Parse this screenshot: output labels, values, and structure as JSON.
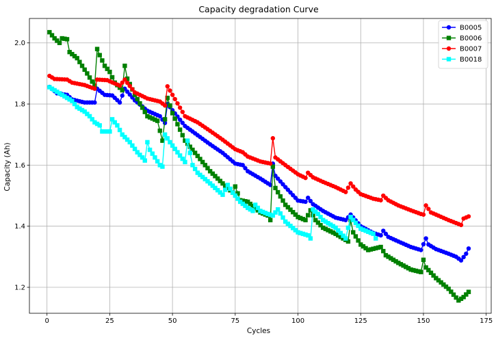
{
  "chart_data": {
    "type": "line",
    "title": "Capacity degradation Curve",
    "xlabel": "Cycles",
    "ylabel": "Capacity (Ah)",
    "xlim": [
      -7,
      177
    ],
    "ylim": [
      1.115,
      2.08
    ],
    "x_ticks": [
      0,
      25,
      50,
      75,
      100,
      125,
      150,
      175
    ],
    "y_ticks": [
      1.2,
      1.4,
      1.6,
      1.8,
      2.0
    ],
    "x_tick_labels": [
      "0",
      "25",
      "50",
      "75",
      "100",
      "125",
      "150",
      "175"
    ],
    "y_tick_labels": [
      "1.2",
      "1.4",
      "1.6",
      "1.8",
      "2.0"
    ],
    "grid": true,
    "legend_position": "top-right",
    "series": [
      {
        "name": "B0005",
        "color": "#0000ff",
        "marker": "circle",
        "points": [
          [
            1,
            1.856
          ],
          [
            4,
            1.835
          ],
          [
            8,
            1.83
          ],
          [
            10,
            1.815
          ],
          [
            15,
            1.805
          ],
          [
            19,
            1.805
          ],
          [
            20,
            1.85
          ],
          [
            23,
            1.83
          ],
          [
            26,
            1.828
          ],
          [
            29,
            1.805
          ],
          [
            31,
            1.85
          ],
          [
            35,
            1.812
          ],
          [
            40,
            1.778
          ],
          [
            45,
            1.76
          ],
          [
            47,
            1.738
          ],
          [
            48,
            1.8
          ],
          [
            55,
            1.728
          ],
          [
            60,
            1.698
          ],
          [
            65,
            1.668
          ],
          [
            70,
            1.64
          ],
          [
            75,
            1.605
          ],
          [
            78,
            1.6
          ],
          [
            80,
            1.58
          ],
          [
            85,
            1.556
          ],
          [
            89,
            1.535
          ],
          [
            90,
            1.605
          ],
          [
            91,
            1.565
          ],
          [
            95,
            1.528
          ],
          [
            100,
            1.484
          ],
          [
            103,
            1.48
          ],
          [
            104,
            1.493
          ],
          [
            106,
            1.472
          ],
          [
            110,
            1.45
          ],
          [
            115,
            1.428
          ],
          [
            119,
            1.42
          ],
          [
            121,
            1.438
          ],
          [
            125,
            1.4
          ],
          [
            130,
            1.378
          ],
          [
            133,
            1.37
          ],
          [
            134,
            1.385
          ],
          [
            136,
            1.365
          ],
          [
            140,
            1.35
          ],
          [
            145,
            1.332
          ],
          [
            149,
            1.322
          ],
          [
            151,
            1.36
          ],
          [
            152,
            1.34
          ],
          [
            155,
            1.325
          ],
          [
            160,
            1.31
          ],
          [
            163,
            1.3
          ],
          [
            165,
            1.288
          ],
          [
            167,
            1.31
          ],
          [
            168,
            1.327
          ]
        ]
      },
      {
        "name": "B0006",
        "color": "#008000",
        "marker": "square",
        "points": [
          [
            1,
            2.035
          ],
          [
            3,
            2.015
          ],
          [
            5,
            2.0
          ],
          [
            6,
            2.015
          ],
          [
            8,
            2.012
          ],
          [
            9,
            1.97
          ],
          [
            12,
            1.95
          ],
          [
            16,
            1.9
          ],
          [
            19,
            1.86
          ],
          [
            20,
            1.98
          ],
          [
            21,
            1.96
          ],
          [
            23,
            1.925
          ],
          [
            25,
            1.905
          ],
          [
            27,
            1.87
          ],
          [
            30,
            1.845
          ],
          [
            31,
            1.925
          ],
          [
            32,
            1.883
          ],
          [
            35,
            1.83
          ],
          [
            40,
            1.76
          ],
          [
            44,
            1.745
          ],
          [
            46,
            1.68
          ],
          [
            48,
            1.82
          ],
          [
            50,
            1.77
          ],
          [
            55,
            1.68
          ],
          [
            60,
            1.63
          ],
          [
            65,
            1.58
          ],
          [
            70,
            1.54
          ],
          [
            74,
            1.51
          ],
          [
            75,
            1.53
          ],
          [
            77,
            1.485
          ],
          [
            80,
            1.48
          ],
          [
            85,
            1.445
          ],
          [
            88,
            1.435
          ],
          [
            89,
            1.42
          ],
          [
            90,
            1.595
          ],
          [
            91,
            1.525
          ],
          [
            95,
            1.47
          ],
          [
            100,
            1.43
          ],
          [
            103,
            1.42
          ],
          [
            105,
            1.452
          ],
          [
            107,
            1.42
          ],
          [
            110,
            1.395
          ],
          [
            115,
            1.375
          ],
          [
            120,
            1.35
          ],
          [
            121,
            1.42
          ],
          [
            122,
            1.38
          ],
          [
            125,
            1.34
          ],
          [
            128,
            1.322
          ],
          [
            133,
            1.332
          ],
          [
            135,
            1.305
          ],
          [
            140,
            1.28
          ],
          [
            145,
            1.258
          ],
          [
            149,
            1.25
          ],
          [
            150,
            1.29
          ],
          [
            151,
            1.265
          ],
          [
            155,
            1.23
          ],
          [
            160,
            1.195
          ],
          [
            164,
            1.157
          ],
          [
            166,
            1.168
          ],
          [
            168,
            1.185
          ]
        ]
      },
      {
        "name": "B0007",
        "color": "#ff0000",
        "marker": "circle",
        "points": [
          [
            1,
            1.892
          ],
          [
            3,
            1.882
          ],
          [
            8,
            1.88
          ],
          [
            10,
            1.87
          ],
          [
            15,
            1.862
          ],
          [
            19,
            1.85
          ],
          [
            20,
            1.88
          ],
          [
            24,
            1.878
          ],
          [
            29,
            1.86
          ],
          [
            31,
            1.88
          ],
          [
            35,
            1.838
          ],
          [
            40,
            1.818
          ],
          [
            45,
            1.808
          ],
          [
            47,
            1.795
          ],
          [
            48,
            1.858
          ],
          [
            55,
            1.76
          ],
          [
            60,
            1.74
          ],
          [
            65,
            1.712
          ],
          [
            70,
            1.683
          ],
          [
            75,
            1.652
          ],
          [
            78,
            1.642
          ],
          [
            80,
            1.628
          ],
          [
            85,
            1.612
          ],
          [
            89,
            1.605
          ],
          [
            90,
            1.688
          ],
          [
            91,
            1.625
          ],
          [
            95,
            1.6
          ],
          [
            100,
            1.57
          ],
          [
            103,
            1.558
          ],
          [
            104,
            1.575
          ],
          [
            106,
            1.56
          ],
          [
            110,
            1.545
          ],
          [
            115,
            1.528
          ],
          [
            119,
            1.512
          ],
          [
            121,
            1.54
          ],
          [
            123,
            1.52
          ],
          [
            125,
            1.505
          ],
          [
            130,
            1.49
          ],
          [
            133,
            1.485
          ],
          [
            134,
            1.5
          ],
          [
            136,
            1.485
          ],
          [
            140,
            1.468
          ],
          [
            145,
            1.452
          ],
          [
            149,
            1.44
          ],
          [
            150,
            1.438
          ],
          [
            151,
            1.468
          ],
          [
            153,
            1.445
          ],
          [
            155,
            1.438
          ],
          [
            160,
            1.42
          ],
          [
            165,
            1.404
          ],
          [
            166,
            1.425
          ],
          [
            168,
            1.432
          ]
        ]
      },
      {
        "name": "B0018",
        "color": "#00ffff",
        "marker": "square",
        "points": [
          [
            1,
            1.855
          ],
          [
            5,
            1.835
          ],
          [
            8,
            1.82
          ],
          [
            10,
            1.81
          ],
          [
            12,
            1.79
          ],
          [
            15,
            1.775
          ],
          [
            17,
            1.76
          ],
          [
            19,
            1.74
          ],
          [
            21,
            1.73
          ],
          [
            22,
            1.71
          ],
          [
            25,
            1.71
          ],
          [
            26,
            1.75
          ],
          [
            28,
            1.73
          ],
          [
            30,
            1.7
          ],
          [
            33,
            1.675
          ],
          [
            36,
            1.642
          ],
          [
            38,
            1.625
          ],
          [
            39,
            1.615
          ],
          [
            40,
            1.675
          ],
          [
            41,
            1.65
          ],
          [
            43,
            1.625
          ],
          [
            45,
            1.6
          ],
          [
            46,
            1.595
          ],
          [
            47,
            1.7
          ],
          [
            49,
            1.675
          ],
          [
            52,
            1.642
          ],
          [
            55,
            1.61
          ],
          [
            56,
            1.68
          ],
          [
            58,
            1.6
          ],
          [
            60,
            1.575
          ],
          [
            65,
            1.54
          ],
          [
            70,
            1.503
          ],
          [
            72,
            1.535
          ],
          [
            74,
            1.51
          ],
          [
            77,
            1.48
          ],
          [
            80,
            1.46
          ],
          [
            82,
            1.45
          ],
          [
            83,
            1.47
          ],
          [
            85,
            1.45
          ],
          [
            88,
            1.44
          ],
          [
            90,
            1.435
          ],
          [
            92,
            1.455
          ],
          [
            95,
            1.415
          ],
          [
            100,
            1.38
          ],
          [
            104,
            1.37
          ],
          [
            105,
            1.36
          ],
          [
            106,
            1.455
          ],
          [
            108,
            1.44
          ],
          [
            110,
            1.42
          ],
          [
            115,
            1.395
          ],
          [
            119,
            1.36
          ],
          [
            121,
            1.43
          ],
          [
            125,
            1.392
          ],
          [
            130,
            1.375
          ],
          [
            131,
            1.36
          ]
        ]
      }
    ]
  }
}
